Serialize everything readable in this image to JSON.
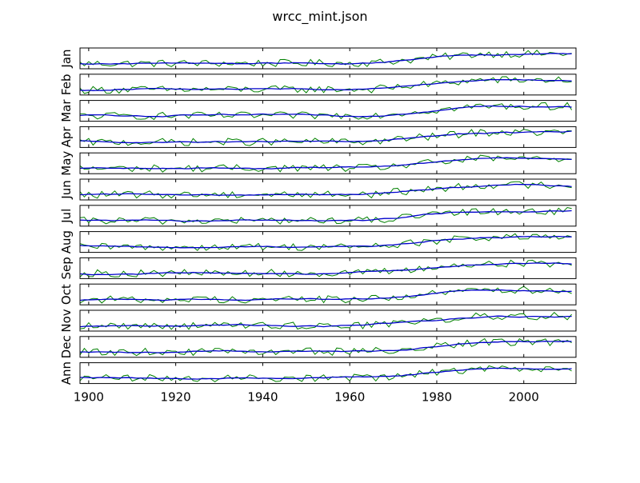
{
  "figure": {
    "title": "wrcc_mint.json"
  },
  "chart_data": {
    "type": "line",
    "title": "wrcc_mint.json",
    "xlim": [
      1898,
      2012
    ],
    "x_ticks": [
      1900,
      1920,
      1940,
      1960,
      1980,
      2000
    ],
    "x_start": 1898,
    "x_end": 2011,
    "grid": false,
    "panel_labels": [
      "Jan",
      "Feb",
      "Mar",
      "Apr",
      "May",
      "Jun",
      "Jul",
      "Aug",
      "Sep",
      "Oct",
      "Nov",
      "Dec",
      "Ann"
    ],
    "colors": {
      "raw": "#008000",
      "smooth": "#0000cc",
      "axes": "#000000"
    },
    "description": "13 stacked panels (monthly + annual), each showing a noisy yearly series (green) and a smoothed trend (blue) that rises from about 0.25 of the panel range before 1970 to about 0.7 after 1980; panels have no y tick labels",
    "series_model": {
      "base_level": 0.25,
      "late_level": 0.72,
      "rise_start": 1965,
      "rise_end": 1990,
      "noise_amplitude": 0.18
    }
  }
}
